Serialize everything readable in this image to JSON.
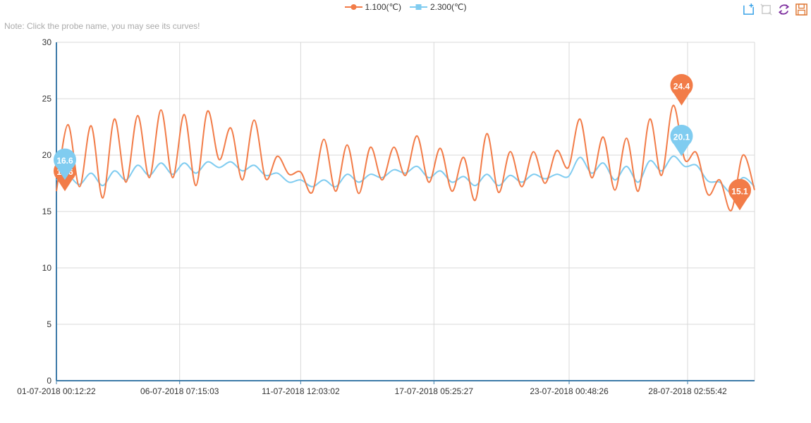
{
  "note": "Note: Click the probe name, you may see its curves!",
  "toolbox": {
    "icons": [
      "zoom-icon",
      "zoom-reset-icon",
      "restore-icon",
      "save-image-icon"
    ],
    "colors": [
      "#3aa3e8",
      "#cccccc",
      "#7a2a9c",
      "#e07b39"
    ]
  },
  "chart_data": {
    "type": "line",
    "title": "",
    "xlabel": "",
    "ylabel": "",
    "ylim": [
      0,
      30
    ],
    "yticks": [
      0,
      5,
      10,
      15,
      20,
      25,
      30
    ],
    "xlim": [
      "2018-07-01 00:12:22",
      "2018-07-31 00:00:00"
    ],
    "xtick_labels": [
      "01-07-2018 00:12:22",
      "06-07-2018 07:15:03",
      "11-07-2018 12:03:02",
      "17-07-2018 05:25:27",
      "23-07-2018 00:48:26",
      "28-07-2018 02:55:42"
    ],
    "grid": true,
    "legend_position": "top-center",
    "series": [
      {
        "name": "1.100(℃)",
        "color": "#f27c48",
        "marker": "circle",
        "x": [
          "2018-07-01 00:12:22",
          "2018-07-01 12:00",
          "2018-07-02 00:00",
          "2018-07-02 12:00",
          "2018-07-03 00:00",
          "2018-07-03 12:00",
          "2018-07-04 00:00",
          "2018-07-04 12:00",
          "2018-07-05 00:00",
          "2018-07-05 12:00",
          "2018-07-06 00:00",
          "2018-07-06 12:00",
          "2018-07-07 00:00",
          "2018-07-07 12:00",
          "2018-07-08 00:00",
          "2018-07-08 12:00",
          "2018-07-09 00:00",
          "2018-07-09 12:00",
          "2018-07-10 00:00",
          "2018-07-10 12:00",
          "2018-07-11 00:00",
          "2018-07-11 12:00",
          "2018-07-12 00:00",
          "2018-07-12 12:00",
          "2018-07-13 00:00",
          "2018-07-13 12:00",
          "2018-07-14 00:00",
          "2018-07-14 12:00",
          "2018-07-15 00:00",
          "2018-07-15 12:00",
          "2018-07-16 00:00",
          "2018-07-16 12:00",
          "2018-07-17 00:00",
          "2018-07-17 12:00",
          "2018-07-18 00:00",
          "2018-07-18 12:00",
          "2018-07-19 00:00",
          "2018-07-19 12:00",
          "2018-07-20 00:00",
          "2018-07-20 12:00",
          "2018-07-21 00:00",
          "2018-07-21 12:00",
          "2018-07-22 00:00",
          "2018-07-22 12:00",
          "2018-07-23 00:00",
          "2018-07-23 12:00",
          "2018-07-24 00:00",
          "2018-07-24 12:00",
          "2018-07-25 00:00",
          "2018-07-25 12:00",
          "2018-07-26 00:00",
          "2018-07-26 12:00",
          "2018-07-27 00:00",
          "2018-07-27 12:00",
          "2018-07-28 00:00",
          "2018-07-28 12:00",
          "2018-07-29 00:00",
          "2018-07-29 12:00",
          "2018-07-30 00:00",
          "2018-07-30 12:00",
          "2018-07-31 00:00"
        ],
        "y": [
          16.8,
          22.7,
          17.2,
          22.6,
          16.2,
          23.2,
          17.6,
          23.5,
          18.0,
          24.0,
          18.0,
          23.6,
          17.3,
          23.9,
          19.6,
          22.4,
          17.8,
          23.1,
          17.9,
          19.9,
          18.3,
          18.5,
          16.7,
          21.4,
          16.8,
          20.9,
          16.6,
          20.7,
          17.8,
          20.7,
          18.2,
          21.7,
          17.6,
          20.6,
          16.8,
          19.8,
          16.0,
          21.9,
          16.7,
          20.3,
          17.2,
          20.3,
          17.5,
          20.4,
          18.9,
          23.2,
          18.0,
          21.6,
          16.9,
          21.5,
          16.8,
          23.2,
          18.2,
          24.4,
          19.6,
          20.2,
          16.5,
          17.8,
          15.1,
          20.0,
          16.9
        ],
        "markers": [
          {
            "label": "16.6",
            "type": "min"
          },
          {
            "label": "24.4",
            "type": "max"
          },
          {
            "label": "15.1",
            "type": "min"
          }
        ]
      },
      {
        "name": "2.300(℃)",
        "color": "#80ccf0",
        "marker": "square",
        "x": [
          "2018-07-01 00:12:22",
          "2018-07-01 12:00",
          "2018-07-02 00:00",
          "2018-07-02 12:00",
          "2018-07-03 00:00",
          "2018-07-03 12:00",
          "2018-07-04 00:00",
          "2018-07-04 12:00",
          "2018-07-05 00:00",
          "2018-07-05 12:00",
          "2018-07-06 00:00",
          "2018-07-06 12:00",
          "2018-07-07 00:00",
          "2018-07-07 12:00",
          "2018-07-08 00:00",
          "2018-07-08 12:00",
          "2018-07-09 00:00",
          "2018-07-09 12:00",
          "2018-07-10 00:00",
          "2018-07-10 12:00",
          "2018-07-11 00:00",
          "2018-07-11 12:00",
          "2018-07-12 00:00",
          "2018-07-12 12:00",
          "2018-07-13 00:00",
          "2018-07-13 12:00",
          "2018-07-14 00:00",
          "2018-07-14 12:00",
          "2018-07-15 00:00",
          "2018-07-15 12:00",
          "2018-07-16 00:00",
          "2018-07-16 12:00",
          "2018-07-17 00:00",
          "2018-07-17 12:00",
          "2018-07-18 00:00",
          "2018-07-18 12:00",
          "2018-07-19 00:00",
          "2018-07-19 12:00",
          "2018-07-20 00:00",
          "2018-07-20 12:00",
          "2018-07-21 00:00",
          "2018-07-21 12:00",
          "2018-07-22 00:00",
          "2018-07-22 12:00",
          "2018-07-23 00:00",
          "2018-07-23 12:00",
          "2018-07-24 00:00",
          "2018-07-24 12:00",
          "2018-07-25 00:00",
          "2018-07-25 12:00",
          "2018-07-26 00:00",
          "2018-07-26 12:00",
          "2018-07-27 00:00",
          "2018-07-27 12:00",
          "2018-07-28 00:00",
          "2018-07-28 12:00",
          "2018-07-29 00:00",
          "2018-07-29 12:00",
          "2018-07-30 00:00",
          "2018-07-30 12:00",
          "2018-07-31 00:00"
        ],
        "y": [
          17.8,
          18.2,
          17.4,
          18.4,
          17.3,
          18.6,
          17.8,
          19.1,
          18.2,
          19.3,
          18.3,
          19.3,
          18.4,
          19.4,
          18.9,
          19.4,
          18.6,
          19.1,
          18.2,
          18.4,
          17.6,
          17.8,
          17.2,
          17.8,
          17.2,
          18.3,
          17.6,
          18.3,
          18.0,
          18.7,
          18.4,
          19.0,
          18.0,
          18.6,
          17.6,
          18.1,
          17.3,
          18.3,
          17.3,
          18.2,
          17.6,
          18.3,
          17.9,
          18.3,
          18.1,
          19.8,
          18.4,
          19.3,
          17.8,
          19.0,
          17.6,
          19.5,
          18.6,
          19.9,
          19.0,
          19.1,
          17.7,
          17.6,
          16.7,
          18.0,
          17.2
        ],
        "markers": [
          {
            "label": "16.6",
            "type": "min"
          },
          {
            "label": "20.1",
            "type": "max"
          }
        ]
      }
    ]
  }
}
